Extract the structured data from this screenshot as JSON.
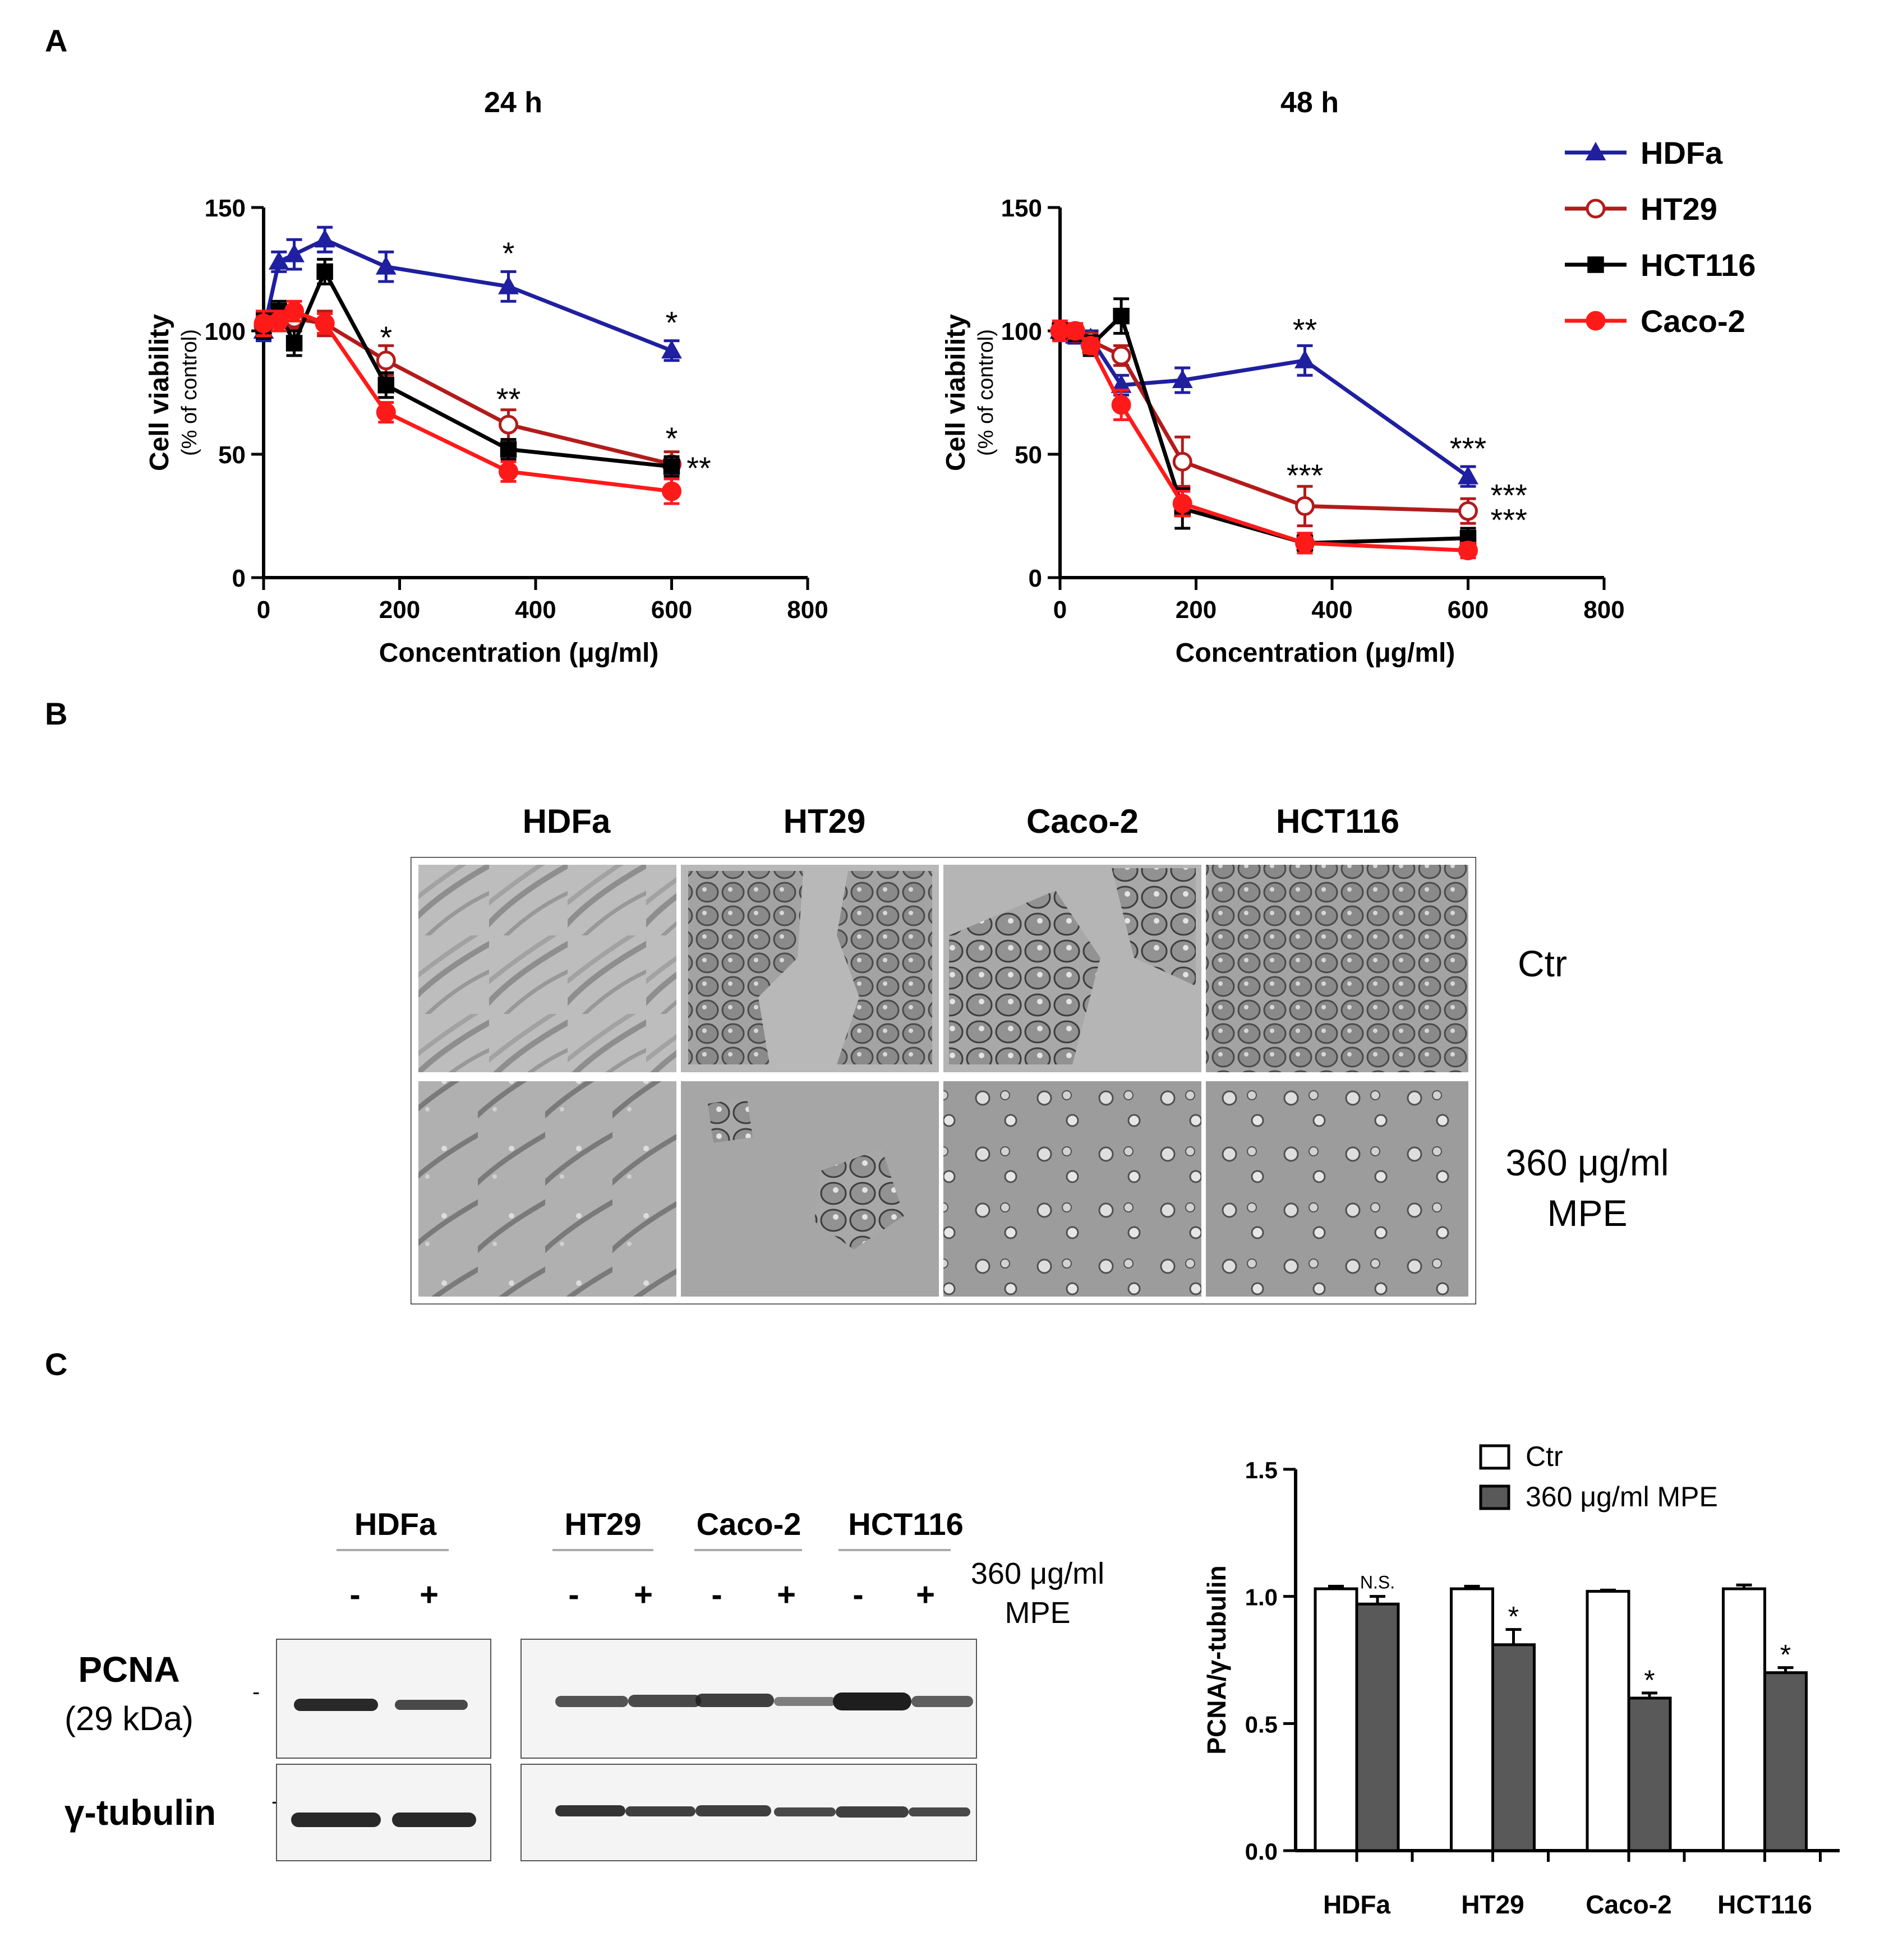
{
  "panels": {
    "a": "A",
    "b": "B",
    "c": "C"
  },
  "colors": {
    "HDFa": "#1f1fa0",
    "HT29": "#b31b1b",
    "HCT116": "#000000",
    "Caco-2": "#ff1a1a",
    "bar_ctr": "#ffffff",
    "bar_mpe": "#595959"
  },
  "panel_a": {
    "legend": [
      {
        "name": "HDFa",
        "marker": "triangle",
        "filled": true
      },
      {
        "name": "HT29",
        "marker": "circle",
        "filled": false
      },
      {
        "name": "HCT116",
        "marker": "square",
        "filled": true
      },
      {
        "name": "Caco-2",
        "marker": "circle",
        "filled": true
      }
    ]
  },
  "chart_data": [
    {
      "type": "line",
      "title": "24 h",
      "xlabel": "Concentration (μg/ml)",
      "ylabel": "Cell viability",
      "ylabel_sub": "(% of control)",
      "xlim": [
        0,
        800
      ],
      "ylim": [
        0,
        150
      ],
      "xticks": [
        0,
        200,
        400,
        600,
        800
      ],
      "yticks": [
        0,
        50,
        100,
        150
      ],
      "series": [
        {
          "name": "HDFa",
          "x": [
            0,
            22.5,
            45,
            90,
            180,
            360,
            600
          ],
          "y": [
            100,
            128,
            131,
            137,
            126,
            118,
            92
          ],
          "err": [
            4,
            4,
            6,
            5,
            6,
            6,
            4
          ]
        },
        {
          "name": "HT29",
          "x": [
            0,
            22.5,
            45,
            90,
            180,
            360,
            600
          ],
          "y": [
            102,
            104,
            105,
            103,
            88,
            62,
            46
          ],
          "err": [
            4,
            4,
            4,
            5,
            6,
            6,
            5
          ]
        },
        {
          "name": "HCT116",
          "x": [
            0,
            22.5,
            45,
            90,
            180,
            360,
            600
          ],
          "y": [
            102,
            108,
            95,
            124,
            78,
            52,
            45
          ],
          "err": [
            5,
            4,
            5,
            5,
            5,
            4,
            4
          ]
        },
        {
          "name": "Caco-2",
          "x": [
            0,
            22.5,
            45,
            90,
            180,
            360,
            600
          ],
          "y": [
            103,
            104,
            108,
            103,
            67,
            43,
            35
          ],
          "err": [
            5,
            4,
            4,
            4,
            4,
            4,
            5
          ]
        }
      ],
      "annotations": [
        {
          "text": "*",
          "x": 180,
          "y": 93
        },
        {
          "text": "*",
          "x": 360,
          "y": 127
        },
        {
          "text": "**",
          "x": 360,
          "y": 68
        },
        {
          "text": "*",
          "x": 600,
          "y": 99
        },
        {
          "text": "*",
          "x": 600,
          "y": 52
        },
        {
          "text": "**",
          "x": 640,
          "y": 40
        }
      ]
    },
    {
      "type": "line",
      "title": "48 h",
      "xlabel": "Concentration (μg/ml)",
      "ylabel": "Cell viability",
      "ylabel_sub": "(% of control)",
      "xlim": [
        0,
        800
      ],
      "ylim": [
        0,
        150
      ],
      "xticks": [
        0,
        200,
        400,
        600,
        800
      ],
      "yticks": [
        0,
        50,
        100,
        150
      ],
      "series": [
        {
          "name": "HDFa",
          "x": [
            0,
            22.5,
            45,
            90,
            180,
            360,
            600
          ],
          "y": [
            100,
            98,
            97,
            78,
            80,
            88,
            41
          ],
          "err": [
            4,
            3,
            3,
            4,
            5,
            6,
            4
          ]
        },
        {
          "name": "HT29",
          "x": [
            0,
            22.5,
            45,
            90,
            180,
            360,
            600
          ],
          "y": [
            100,
            99,
            96,
            90,
            47,
            29,
            27
          ],
          "err": [
            3,
            3,
            3,
            4,
            10,
            8,
            5
          ]
        },
        {
          "name": "HCT116",
          "x": [
            0,
            22.5,
            45,
            90,
            180,
            360,
            600
          ],
          "y": [
            100,
            99,
            94,
            106,
            28,
            14,
            16
          ],
          "err": [
            3,
            3,
            4,
            7,
            8,
            3,
            4
          ]
        },
        {
          "name": "Caco-2",
          "x": [
            0,
            22.5,
            45,
            90,
            180,
            360,
            600
          ],
          "y": [
            100,
            100,
            94,
            70,
            30,
            14,
            11
          ],
          "err": [
            4,
            3,
            3,
            6,
            5,
            4,
            3
          ]
        }
      ],
      "annotations": [
        {
          "text": "**",
          "x": 360,
          "y": 96
        },
        {
          "text": "***",
          "x": 600,
          "y": 48
        },
        {
          "text": "***",
          "x": 360,
          "y": 37
        },
        {
          "text": "***",
          "x": 660,
          "y": 29
        },
        {
          "text": "***",
          "x": 660,
          "y": 19
        }
      ]
    },
    {
      "type": "bar",
      "ylabel": "PCNA/γ-tubulin",
      "categories": [
        "HDFa",
        "HT29",
        "Caco-2",
        "HCT116"
      ],
      "ylim": [
        0,
        1.5
      ],
      "yticks": [
        "0.0",
        "0.5",
        "1.0",
        "1.5"
      ],
      "series": [
        {
          "name": "Ctr",
          "values": [
            1.03,
            1.03,
            1.02,
            1.03
          ],
          "err": [
            0.01,
            0.01,
            0.005,
            0.015
          ]
        },
        {
          "name": "360 μg/ml MPE",
          "values": [
            0.97,
            0.81,
            0.6,
            0.7
          ],
          "err": [
            0.03,
            0.06,
            0.02,
            0.02
          ]
        }
      ],
      "annotations": [
        "N.S.",
        "*",
        "*",
        "*"
      ]
    }
  ],
  "panel_b": {
    "columns": [
      "HDFa",
      "HT29",
      "Caco-2",
      "HCT116"
    ],
    "rows": [
      {
        "label": "Ctr"
      },
      {
        "label_line1": "360 μg/ml",
        "label_line2": "MPE"
      }
    ]
  },
  "panel_c": {
    "groups": [
      "HDFa",
      "HT29",
      "Caco-2",
      "HCT116"
    ],
    "treatment_line1": "360 μg/ml",
    "treatment_line2": "MPE",
    "lane_signs": [
      "-",
      "+",
      "-",
      "+",
      "-",
      "+",
      "-",
      "+"
    ],
    "pcna_label": "PCNA",
    "pcna_kda": "(29 kDa)",
    "tubulin_label": "γ-tubulin",
    "marker": "-",
    "pcna_band_strength": [
      0.95,
      0.8,
      0.75,
      0.8,
      0.85,
      0.55,
      1.0,
      0.7
    ],
    "tubulin_band_strength": [
      0.95,
      0.95,
      0.9,
      0.85,
      0.85,
      0.8,
      0.85,
      0.8
    ]
  }
}
